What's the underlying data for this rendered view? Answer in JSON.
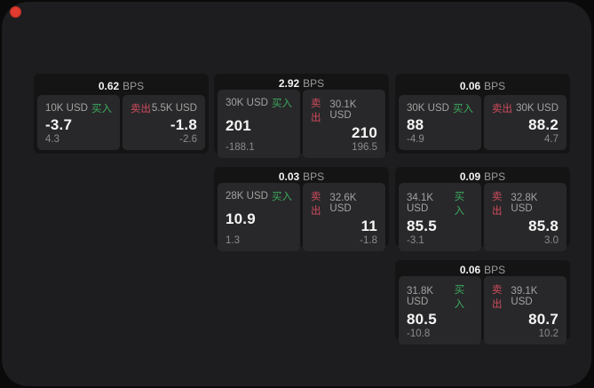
{
  "colors": {
    "window_bg": "#1d1d1f",
    "card_bg": "#141415",
    "panel_bg": "#28282a",
    "buy_green": "#3dab5e",
    "sell_red": "#d14b5d",
    "record_dot_red": "#e23b30"
  },
  "cards": [
    {
      "header": {
        "value": "0.62",
        "unit": "BPS"
      },
      "buy": {
        "amount": "10K USD",
        "side_label": "买入",
        "value": "-3.7",
        "sub_value": "4.3"
      },
      "sell": {
        "side_label": "卖出",
        "amount": "5.5K USD",
        "value": "-1.8",
        "sub_value": "-2.6"
      }
    },
    {
      "header": {
        "value": "2.92",
        "unit": "BPS"
      },
      "buy": {
        "amount": "30K USD",
        "side_label": "买入",
        "value": "201",
        "sub_value": "-188.1"
      },
      "sell": {
        "side_label": "卖出",
        "amount": "30.1K USD",
        "value": "210",
        "sub_value": "196.5"
      }
    },
    {
      "header": {
        "value": "0.06",
        "unit": "BPS"
      },
      "buy": {
        "amount": "30K USD",
        "side_label": "买入",
        "value": "88",
        "sub_value": "-4.9"
      },
      "sell": {
        "side_label": "卖出",
        "amount": "30K USD",
        "value": "88.2",
        "sub_value": "4.7"
      }
    },
    {
      "header": {
        "value": "0.03",
        "unit": "BPS"
      },
      "buy": {
        "amount": "28K USD",
        "side_label": "买入",
        "value": "10.9",
        "sub_value": "1.3"
      },
      "sell": {
        "side_label": "卖出",
        "amount": "32.6K USD",
        "value": "11",
        "sub_value": "-1.8"
      }
    },
    {
      "header": {
        "value": "0.09",
        "unit": "BPS"
      },
      "buy": {
        "amount": "34.1K USD",
        "side_label": "买入",
        "value": "85.5",
        "sub_value": "-3.1"
      },
      "sell": {
        "side_label": "卖出",
        "amount": "32.8K USD",
        "value": "85.8",
        "sub_value": "3.0"
      }
    },
    {
      "header": {
        "value": "0.06",
        "unit": "BPS"
      },
      "buy": {
        "amount": "31.8K USD",
        "side_label": "买入",
        "value": "80.5",
        "sub_value": "-10.8"
      },
      "sell": {
        "side_label": "卖出",
        "amount": "39.1K USD",
        "value": "80.7",
        "sub_value": "10.2"
      }
    }
  ]
}
